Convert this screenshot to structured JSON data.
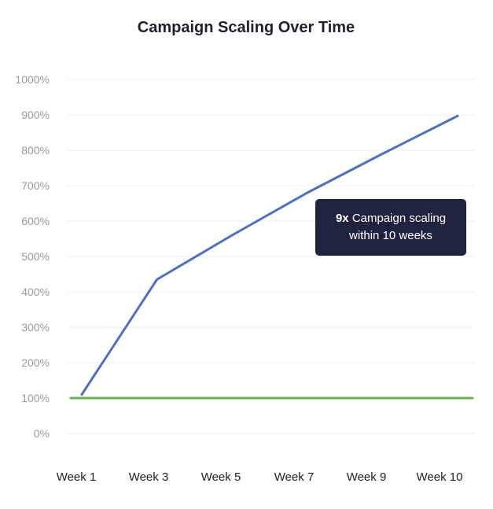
{
  "chart_data": {
    "type": "line",
    "title": "Campaign Scaling Over Time",
    "xlabel": "",
    "ylabel": "",
    "categories": [
      "Week 1",
      "Week 3",
      "Week 5",
      "Week 7",
      "Week 9",
      "Week 10"
    ],
    "y_ticks": [
      "0%",
      "100%",
      "200%",
      "300%",
      "400%",
      "500%",
      "600%",
      "700%",
      "800%",
      "900%",
      "1000%"
    ],
    "ylim": [
      0,
      1000
    ],
    "grid": true,
    "series": [
      {
        "color": "#4a72c0",
        "values": [
          110,
          435,
          560,
          680,
          790,
          897
        ]
      },
      {
        "color": "#6ab04c",
        "values": [
          100,
          100,
          100,
          100,
          100,
          100
        ],
        "baseline": true
      }
    ],
    "annotation": {
      "bold": "9x",
      "line1": "Campaign scaling",
      "line2": "within 10 weeks"
    }
  }
}
